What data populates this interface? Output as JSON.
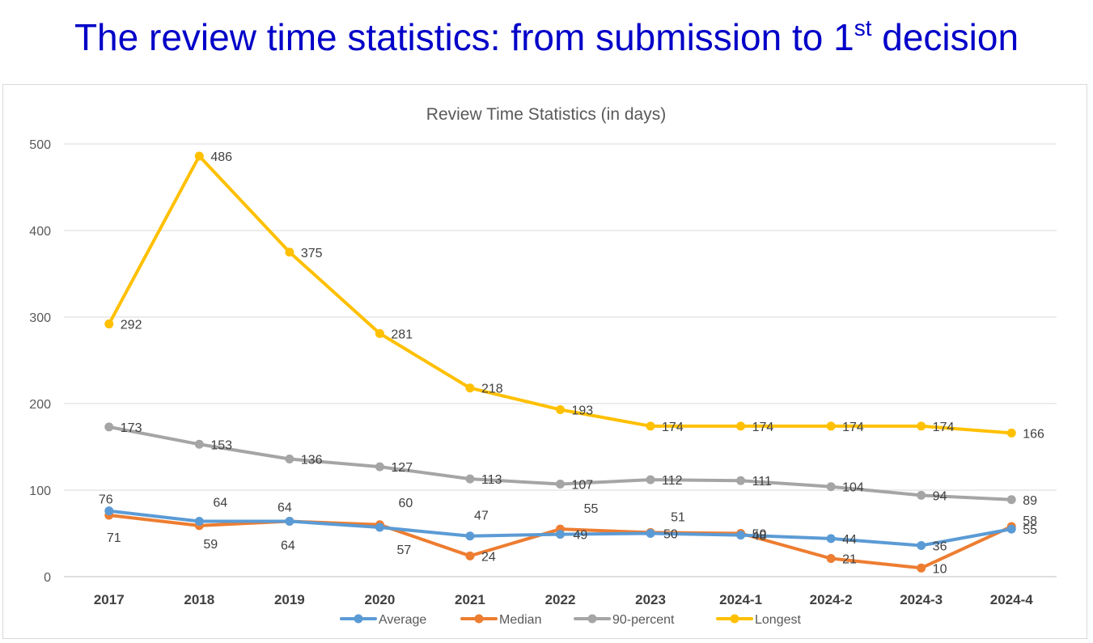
{
  "page": {
    "title_main": "The review time statistics: from submission to 1",
    "title_sup": "st",
    "title_end": " decision"
  },
  "chart_data": {
    "type": "line",
    "title": "Review Time Statistics (in days)",
    "xlabel": "",
    "ylabel": "",
    "ylim": [
      0,
      500
    ],
    "yticks": [
      0,
      100,
      200,
      300,
      400,
      500
    ],
    "grid": true,
    "legend": "bottom",
    "categories": [
      "2017",
      "2018",
      "2019",
      "2020",
      "2021",
      "2022",
      "2023",
      "2024-1",
      "2024-2",
      "2024-3",
      "2024-4"
    ],
    "series": [
      {
        "name": "Average",
        "color": "#5b9bd5",
        "values": [
          76,
          64,
          64,
          57,
          47,
          49,
          50,
          48,
          44,
          36,
          55
        ]
      },
      {
        "name": "Median",
        "color": "#ed7d31",
        "values": [
          71,
          59,
          64,
          60,
          24,
          55,
          51,
          50,
          21,
          10,
          58
        ]
      },
      {
        "name": "90-percent",
        "color": "#a5a5a5",
        "values": [
          173,
          153,
          136,
          127,
          113,
          107,
          112,
          111,
          104,
          94,
          89
        ]
      },
      {
        "name": "Longest",
        "color": "#ffc000",
        "values": [
          292,
          486,
          375,
          281,
          218,
          193,
          174,
          174,
          174,
          174,
          166
        ]
      }
    ]
  }
}
